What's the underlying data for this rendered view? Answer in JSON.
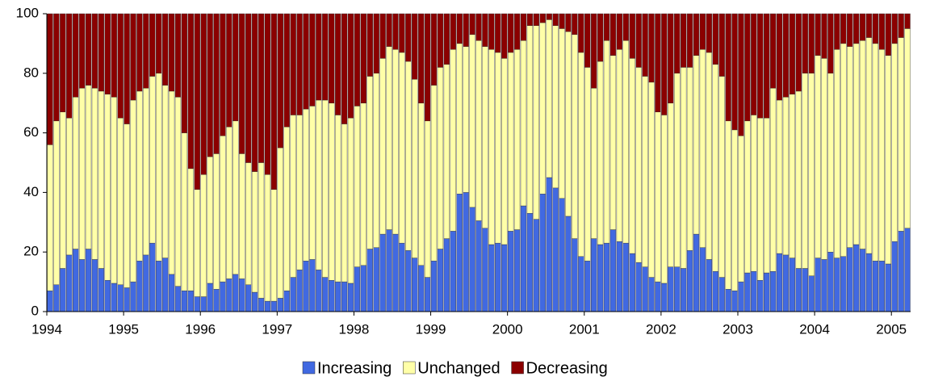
{
  "chart_data": {
    "type": "stacked_bar",
    "categories": [
      "1994",
      null,
      null,
      null,
      null,
      null,
      null,
      null,
      null,
      null,
      null,
      null,
      "1995",
      null,
      null,
      null,
      null,
      null,
      null,
      null,
      null,
      null,
      null,
      null,
      "1996",
      null,
      null,
      null,
      null,
      null,
      null,
      null,
      null,
      null,
      null,
      null,
      "1997",
      null,
      null,
      null,
      null,
      null,
      null,
      null,
      null,
      null,
      null,
      null,
      "1998",
      null,
      null,
      null,
      null,
      null,
      null,
      null,
      null,
      null,
      null,
      null,
      "1999",
      null,
      null,
      null,
      null,
      null,
      null,
      null,
      null,
      null,
      null,
      null,
      "2000",
      null,
      null,
      null,
      null,
      null,
      null,
      null,
      null,
      null,
      null,
      null,
      "2001",
      null,
      null,
      null,
      null,
      null,
      null,
      null,
      null,
      null,
      null,
      null,
      "2002",
      null,
      null,
      null,
      null,
      null,
      null,
      null,
      null,
      null,
      null,
      null,
      "2003",
      null,
      null,
      null,
      null,
      null,
      null,
      null,
      null,
      null,
      null,
      null,
      "2004",
      null,
      null,
      null,
      null,
      null,
      null,
      null,
      null,
      null,
      null,
      null,
      "2005",
      null,
      null
    ],
    "series": [
      {
        "name": "Increasing",
        "color": "#4169e1",
        "values": [
          7,
          9,
          14.5,
          19,
          21,
          17.5,
          21,
          17.5,
          14.5,
          10.5,
          9.5,
          9,
          8,
          10,
          17,
          19,
          23,
          17,
          18,
          12.5,
          8.5,
          7,
          7,
          5,
          5,
          9.5,
          7.5,
          10,
          11,
          12.5,
          11,
          9,
          6.5,
          4.5,
          3.5,
          3.5,
          4.5,
          7,
          11.5,
          14,
          17,
          17.5,
          14,
          11.5,
          10.5,
          10,
          10,
          9.5,
          15,
          15.5,
          21,
          21.5,
          26,
          27.5,
          26,
          23,
          20.5,
          18,
          15.5,
          11.5,
          17,
          21,
          24.5,
          27,
          39.5,
          40,
          35,
          30.5,
          28,
          22.5,
          23,
          22.5,
          27,
          27.5,
          35.5,
          33,
          31,
          39.5,
          45,
          41.5,
          38,
          32,
          24.5,
          18.5,
          17,
          24.5,
          22.5,
          23,
          27.5,
          23.5,
          23,
          19.5,
          16.5,
          15,
          11.5,
          10,
          9.5,
          15,
          15,
          14.5,
          20.5,
          26,
          21.5,
          17.5,
          13.5,
          11.5,
          7.5,
          7,
          10,
          13,
          13.5,
          10.5,
          13,
          13.5,
          19.5,
          19,
          18,
          14.5,
          14.5,
          12,
          18,
          17.5,
          20,
          18,
          18.5,
          21.5,
          22.5,
          21,
          19.5,
          17,
          17,
          16,
          23.5,
          27,
          28
        ]
      },
      {
        "name": "Unchanged",
        "color": "#ffffa8",
        "values": [
          49,
          55,
          52.5,
          46,
          51,
          57.5,
          55,
          57.5,
          59.5,
          62.5,
          62.5,
          56,
          55,
          61,
          57,
          56,
          56,
          63,
          58,
          61.5,
          63.5,
          53,
          41,
          36,
          41,
          42.5,
          45.5,
          49,
          51,
          51.5,
          42,
          41,
          40.5,
          45.5,
          42.5,
          37.5,
          50.5,
          55,
          54.5,
          52,
          51,
          51.5,
          57,
          59.5,
          59.5,
          56,
          53,
          55.5,
          54,
          54.5,
          58,
          58.5,
          59,
          61.5,
          62,
          64,
          63.5,
          60,
          54.5,
          52.5,
          59,
          61,
          58.5,
          61,
          50.5,
          49,
          58,
          60.5,
          61,
          65.5,
          64,
          62.5,
          60,
          60.5,
          55.5,
          63,
          65,
          57.5,
          53,
          54.5,
          57,
          62,
          68.5,
          68.5,
          65,
          50.5,
          61.5,
          68,
          58.5,
          64.5,
          68,
          65.5,
          65.5,
          64,
          65.5,
          57,
          56.5,
          55,
          65,
          67.5,
          61.5,
          60,
          66.5,
          69.5,
          69.5,
          67.5,
          56.5,
          54,
          49,
          51,
          52.5,
          54.5,
          52,
          61.5,
          51.5,
          53,
          55,
          59.5,
          65.5,
          68,
          68,
          67.5,
          60,
          70,
          71.5,
          67.5,
          67.5,
          70,
          72.5,
          73,
          71,
          70,
          66.5,
          65,
          67
        ]
      },
      {
        "name": "Decreasing",
        "color": "#8b0000",
        "values": [
          44,
          36,
          33,
          35,
          28,
          25,
          24,
          25,
          26,
          27,
          28,
          35,
          37,
          29,
          26,
          25,
          21,
          20,
          24,
          26,
          28,
          40,
          52,
          59,
          54,
          48,
          47,
          41,
          38,
          36,
          47,
          50,
          53,
          50,
          54,
          59,
          45,
          38,
          34,
          34,
          32,
          31,
          29,
          29,
          30,
          34,
          37,
          35,
          31,
          30,
          21,
          20,
          15,
          11,
          12,
          13,
          16,
          22,
          30,
          36,
          24,
          18,
          17,
          12,
          10,
          11,
          7,
          9,
          11,
          12,
          13,
          15,
          13,
          12,
          9,
          4,
          4,
          3,
          2,
          4,
          5,
          6,
          7,
          13,
          18,
          25,
          16,
          9,
          14,
          12,
          9,
          15,
          18,
          21,
          23,
          33,
          34,
          30,
          20,
          18,
          18,
          14,
          12,
          13,
          17,
          21,
          36,
          39,
          41,
          36,
          34,
          35,
          35,
          25,
          29,
          28,
          27,
          26,
          20,
          20,
          14,
          15,
          20,
          12,
          10,
          11,
          10,
          9,
          8,
          10,
          12,
          14,
          10,
          8,
          5
        ]
      }
    ],
    "ylim": [
      0,
      100
    ],
    "yticks": [
      0,
      20,
      40,
      60,
      80,
      100
    ],
    "grid": false,
    "legend": "bottom"
  }
}
